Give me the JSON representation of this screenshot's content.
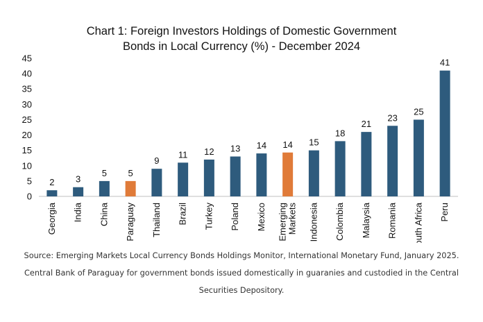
{
  "chart_data": {
    "type": "bar",
    "title_lines": [
      "Chart 1: Foreign Investors Holdings of Domestic Government",
      "Bonds in Local Currency (%) - December 2024"
    ],
    "categories": [
      [
        "Georgia"
      ],
      [
        "India"
      ],
      [
        "China"
      ],
      [
        "Paraguay"
      ],
      [
        "Thailand"
      ],
      [
        "Brazil"
      ],
      [
        "Turkey"
      ],
      [
        "Poland"
      ],
      [
        "Mexico"
      ],
      [
        "Emerging",
        "Markets"
      ],
      [
        "Indonesia"
      ],
      [
        "Colombia"
      ],
      [
        "Malaysia"
      ],
      [
        "Romania"
      ],
      [
        "South Africa"
      ],
      [
        "Peru"
      ]
    ],
    "values": [
      2,
      3,
      5,
      5,
      9,
      11,
      12,
      13,
      14,
      14.3,
      15,
      18,
      21,
      23,
      25,
      41
    ],
    "data_labels": [
      "2",
      "3",
      "5",
      "5",
      "9",
      "11",
      "12",
      "13",
      "14",
      "14",
      "15",
      "18",
      "21",
      "23",
      "25",
      "41"
    ],
    "highlight_indices": [
      3,
      9
    ],
    "colors": {
      "default": "#2e5b7d",
      "highlight": "#e07b39"
    },
    "ylim": [
      0,
      45
    ],
    "yticks": [
      0,
      5,
      10,
      15,
      20,
      25,
      30,
      35,
      40,
      45
    ],
    "xlabel": "",
    "ylabel": "",
    "grid": false,
    "legend": "none"
  },
  "source_note": "Source: Emerging Markets Local Currency Bonds Holdings Monitor, International Monetary Fund, January 2025. Central Bank of Paraguay for government bonds issued domestically in guaranies and custodied in the Central Securities Depository."
}
